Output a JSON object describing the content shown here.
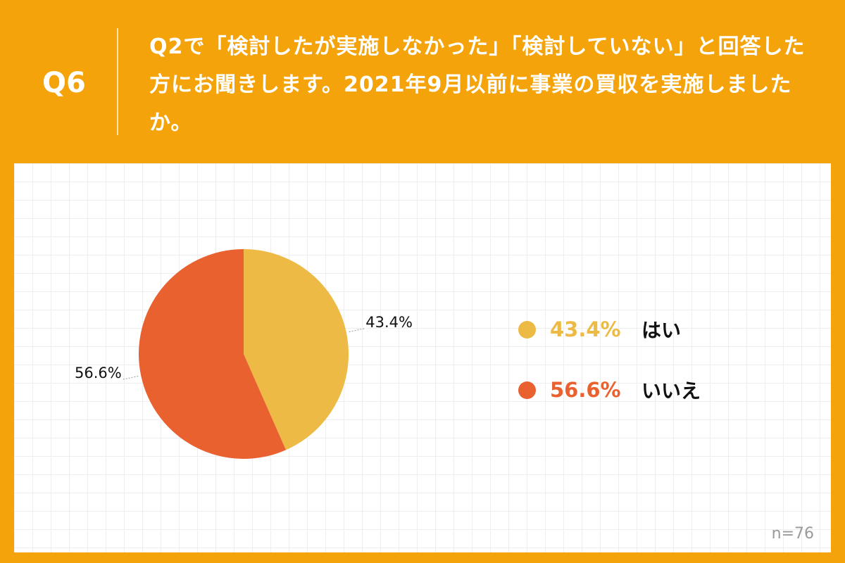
{
  "header": {
    "q_label": "Q6",
    "question": "Q2で「検討したが実施しなかった」「検討していない」と回答した方にお聞きします。2021年9月以前に事業の買収を実施しましたか。"
  },
  "colors": {
    "background": "#F4A30A",
    "yes": "#EDBB45",
    "no": "#E9612F"
  },
  "chart_data": {
    "type": "pie",
    "slices": [
      {
        "label": "はい",
        "value": 43.4,
        "display": "43.4%",
        "color": "#EDBB45"
      },
      {
        "label": "いいえ",
        "value": 56.6,
        "display": "56.6%",
        "color": "#E9612F"
      }
    ],
    "start": "12 o'clock",
    "direction": "clockwise",
    "legend_position": "right",
    "note": "n=76"
  }
}
